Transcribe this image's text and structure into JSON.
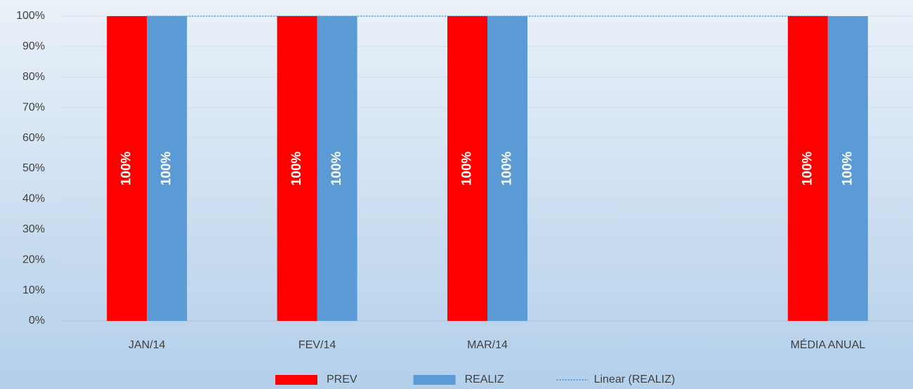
{
  "chart_data": {
    "type": "bar",
    "categories": [
      "JAN/14",
      "FEV/14",
      "MAR/14",
      null,
      "MÉDIA ANUAL"
    ],
    "series": [
      {
        "name": "PREV",
        "color": "#ff0000",
        "values": [
          100,
          100,
          100,
          null,
          100
        ],
        "value_labels": [
          "100%",
          "100%",
          "100%",
          null,
          "100%"
        ]
      },
      {
        "name": "REALIZ",
        "color": "#5b9bd5",
        "values": [
          100,
          100,
          100,
          null,
          100
        ],
        "value_labels": [
          "100%",
          "100%",
          "100%",
          null,
          "100%"
        ]
      }
    ],
    "trendline": {
      "name": "Linear (REALIZ)",
      "color": "#5b9bd5",
      "values": [
        100,
        100,
        100,
        100,
        100
      ]
    },
    "ylim": [
      0,
      100
    ],
    "yticks": [
      {
        "value": 0,
        "label": "0%"
      },
      {
        "value": 10,
        "label": "10%"
      },
      {
        "value": 20,
        "label": "20%"
      },
      {
        "value": 30,
        "label": "30%"
      },
      {
        "value": 40,
        "label": "40%"
      },
      {
        "value": 50,
        "label": "50%"
      },
      {
        "value": 60,
        "label": "60%"
      },
      {
        "value": 70,
        "label": "70%"
      },
      {
        "value": 80,
        "label": "80%"
      },
      {
        "value": 90,
        "label": "90%"
      },
      {
        "value": 100,
        "label": "100%"
      }
    ],
    "grid": true,
    "legend": "bottom"
  }
}
